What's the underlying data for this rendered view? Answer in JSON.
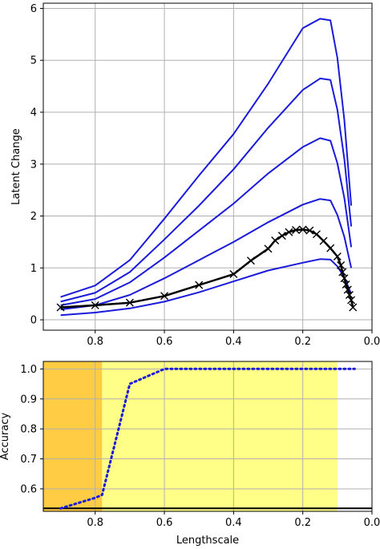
{
  "chart_data": [
    {
      "type": "line",
      "title": "",
      "xlabel": "",
      "ylabel": "Latent Change",
      "xlim": [
        0.95,
        0.0
      ],
      "ylim": [
        -0.2,
        6.1
      ],
      "x_reversed": true,
      "grid": true,
      "xticks": [
        0.8,
        0.6,
        0.4,
        0.2,
        0.0
      ],
      "xtick_labels": [
        "0.8",
        "0.6",
        "0.4",
        "0.2",
        "0.0"
      ],
      "yticks": [
        0,
        1,
        2,
        3,
        4,
        5,
        6
      ],
      "ytick_labels": [
        "0",
        "1",
        "2",
        "3",
        "4",
        "5",
        "6"
      ],
      "series": [
        {
          "color": "#1a1adb",
          "style": "solid",
          "x": [
            0.9,
            0.8,
            0.7,
            0.6,
            0.5,
            0.4,
            0.3,
            0.2,
            0.15,
            0.12,
            0.1,
            0.08,
            0.06
          ],
          "y": [
            0.44,
            0.66,
            1.15,
            1.95,
            2.78,
            3.58,
            4.55,
            5.62,
            5.8,
            5.77,
            5.05,
            3.85,
            2.2
          ]
        },
        {
          "color": "#1a1adb",
          "style": "solid",
          "x": [
            0.9,
            0.8,
            0.7,
            0.6,
            0.5,
            0.4,
            0.3,
            0.2,
            0.15,
            0.12,
            0.1,
            0.08,
            0.06
          ],
          "y": [
            0.35,
            0.52,
            0.92,
            1.55,
            2.2,
            2.9,
            3.7,
            4.43,
            4.65,
            4.62,
            4.05,
            3.1,
            1.8
          ]
        },
        {
          "color": "#1a1adb",
          "style": "solid",
          "x": [
            0.9,
            0.8,
            0.7,
            0.6,
            0.5,
            0.4,
            0.3,
            0.2,
            0.15,
            0.12,
            0.1,
            0.08,
            0.06
          ],
          "y": [
            0.28,
            0.4,
            0.72,
            1.2,
            1.72,
            2.24,
            2.82,
            3.33,
            3.5,
            3.45,
            3.02,
            2.35,
            1.4
          ]
        },
        {
          "color": "#1a1adb",
          "style": "solid",
          "x": [
            0.9,
            0.8,
            0.7,
            0.6,
            0.5,
            0.4,
            0.3,
            0.2,
            0.15,
            0.12,
            0.1,
            0.08,
            0.06
          ],
          "y": [
            0.2,
            0.28,
            0.48,
            0.8,
            1.15,
            1.5,
            1.88,
            2.22,
            2.33,
            2.3,
            2.02,
            1.6,
            1.0
          ]
        },
        {
          "color": "#1a1adb",
          "style": "solid",
          "x": [
            0.9,
            0.8,
            0.7,
            0.6,
            0.5,
            0.4,
            0.3,
            0.2,
            0.15,
            0.12,
            0.1,
            0.08,
            0.06
          ],
          "y": [
            0.09,
            0.14,
            0.22,
            0.35,
            0.53,
            0.74,
            0.95,
            1.1,
            1.17,
            1.16,
            1.03,
            0.82,
            0.5
          ]
        },
        {
          "color": "#000000",
          "style": "solid",
          "marker": "x",
          "x": [
            0.9,
            0.8,
            0.7,
            0.6,
            0.5,
            0.4,
            0.35,
            0.3,
            0.28,
            0.26,
            0.24,
            0.22,
            0.2,
            0.18,
            0.16,
            0.14,
            0.12,
            0.1,
            0.09,
            0.085,
            0.08,
            0.075,
            0.07,
            0.065,
            0.06,
            0.055
          ],
          "y": [
            0.24,
            0.28,
            0.33,
            0.46,
            0.67,
            0.88,
            1.14,
            1.37,
            1.53,
            1.62,
            1.69,
            1.73,
            1.74,
            1.72,
            1.65,
            1.52,
            1.38,
            1.22,
            1.05,
            0.92,
            0.8,
            0.68,
            0.58,
            0.48,
            0.38,
            0.24
          ]
        }
      ]
    },
    {
      "type": "line",
      "title": "",
      "xlabel": "Lengthscale",
      "ylabel": "Accuracy",
      "xlim": [
        0.95,
        0.0
      ],
      "ylim": [
        0.525,
        1.025
      ],
      "x_reversed": true,
      "grid": true,
      "xticks": [
        0.8,
        0.6,
        0.4,
        0.2,
        0.0
      ],
      "xtick_labels": [
        "0.8",
        "0.6",
        "0.4",
        "0.2",
        "0.0"
      ],
      "yticks": [
        0.6,
        0.7,
        0.8,
        0.9,
        1.0
      ],
      "ytick_labels": [
        "0.6",
        "0.7",
        "0.8",
        "0.9",
        "1.0"
      ],
      "regions": [
        {
          "x_from": 0.95,
          "x_to": 0.78,
          "color": "#ffcc44"
        },
        {
          "x_from": 0.78,
          "x_to": 0.1,
          "color": "#ffff88"
        }
      ],
      "hlines": [
        {
          "y": 0.535,
          "color": "#000000"
        }
      ],
      "series": [
        {
          "color": "#1a1adb",
          "style": "dotted",
          "x": [
            0.9,
            0.8,
            0.78,
            0.7,
            0.6,
            0.05
          ],
          "y": [
            0.535,
            0.57,
            0.58,
            0.95,
            1.0,
            1.0
          ]
        }
      ]
    }
  ]
}
